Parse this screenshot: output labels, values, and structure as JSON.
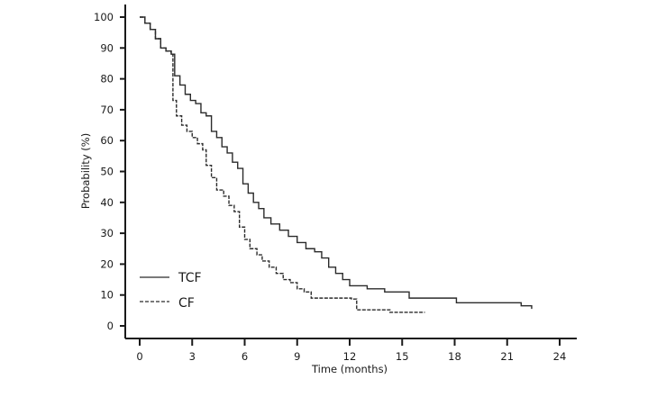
{
  "chart_data": {
    "type": "line",
    "title": "",
    "xlabel": "Time (months)",
    "ylabel": "Probability (%)",
    "xlim": [
      0,
      24
    ],
    "ylim": [
      0,
      100
    ],
    "xticks": [
      0,
      3,
      6,
      9,
      12,
      15,
      18,
      21,
      24
    ],
    "yticks": [
      0,
      10,
      20,
      30,
      40,
      50,
      60,
      70,
      80,
      90,
      100
    ],
    "xtick_labels": [
      "0",
      "3",
      "6",
      "9",
      "12",
      "15",
      "18",
      "21",
      "24"
    ],
    "ytick_labels": [
      "0",
      "10",
      "20",
      "30",
      "40",
      "50",
      "60",
      "70",
      "80",
      "90",
      "100"
    ],
    "grid": false,
    "legend_position": "bottom-left",
    "step": true,
    "series": [
      {
        "name": "TCF",
        "style": "solid",
        "color": "#2b2b2b",
        "x": [
          0,
          0.3,
          0.6,
          0.9,
          1.2,
          1.5,
          1.8,
          2.0,
          2.3,
          2.6,
          2.9,
          3.2,
          3.5,
          3.8,
          4.1,
          4.4,
          4.7,
          5.0,
          5.3,
          5.6,
          5.9,
          6.2,
          6.5,
          6.8,
          7.1,
          7.5,
          8.0,
          8.5,
          9.0,
          9.5,
          10.0,
          10.4,
          10.8,
          11.2,
          11.6,
          12.0,
          13.0,
          14.0,
          15.4,
          18.1,
          21.8,
          22.4
        ],
        "y": [
          100,
          98,
          96,
          93,
          90,
          89,
          88,
          81,
          78,
          75,
          73,
          72,
          69,
          68,
          63,
          61,
          58,
          56,
          53,
          51,
          46,
          43,
          40,
          38,
          35,
          33,
          31,
          29,
          27,
          25,
          24,
          22,
          19,
          17,
          15,
          13,
          12,
          11,
          9,
          7.5,
          6.5,
          5.5
        ]
      },
      {
        "name": "CF",
        "style": "dashed",
        "color": "#2b2b2b",
        "x": [
          0,
          0.3,
          0.6,
          0.9,
          1.2,
          1.5,
          1.8,
          1.9,
          2.1,
          2.4,
          2.7,
          3.0,
          3.3,
          3.6,
          3.8,
          4.1,
          4.4,
          4.8,
          5.1,
          5.4,
          5.7,
          6.0,
          6.3,
          6.7,
          7.0,
          7.4,
          7.8,
          8.2,
          8.6,
          9.0,
          9.4,
          9.8,
          12.1,
          12.4,
          14.3,
          16.3
        ],
        "y": [
          100,
          98,
          96,
          93,
          90,
          89,
          88,
          73,
          68,
          65,
          63,
          61,
          59,
          57,
          52,
          48,
          44,
          42,
          39,
          37,
          32,
          28,
          25,
          23,
          21,
          19,
          17,
          15,
          14,
          12,
          11,
          9,
          8.7,
          5.2,
          4.4,
          4.4
        ]
      }
    ]
  }
}
